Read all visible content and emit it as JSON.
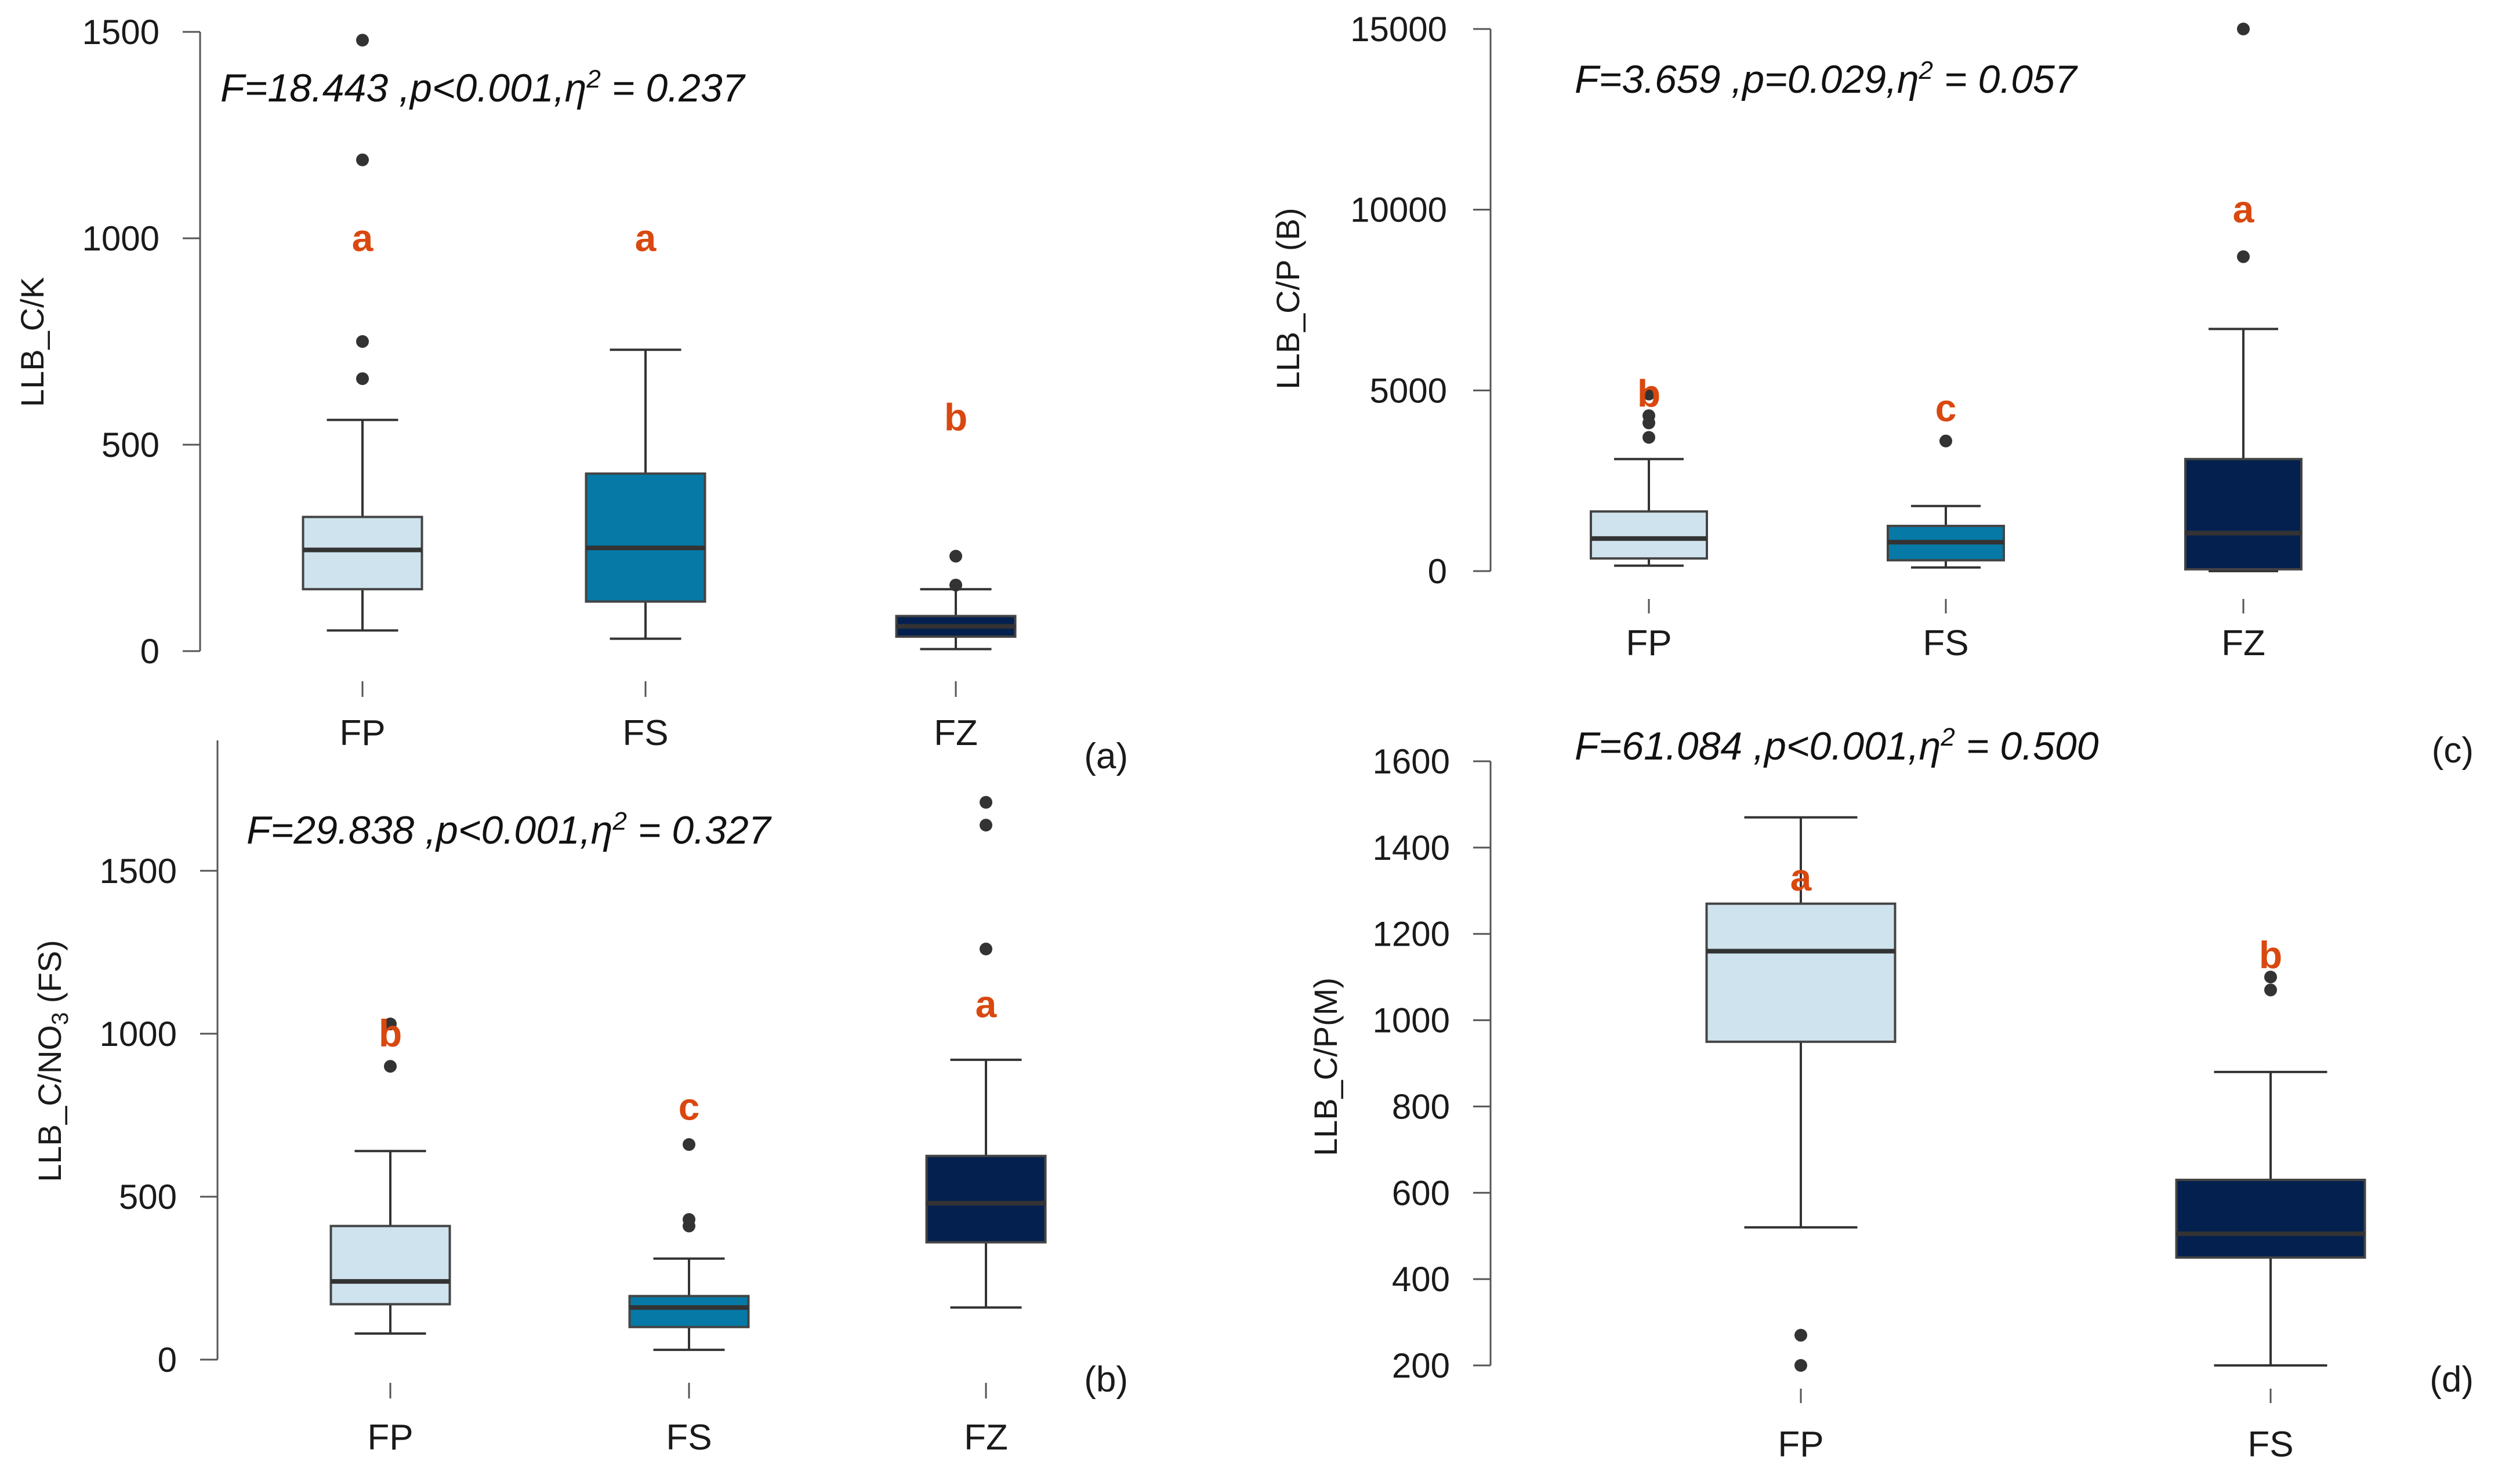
{
  "colors": {
    "FP": "#cfe3ee",
    "FS": "#0679a6",
    "FZ": "#04204f",
    "letter": "#d9480f",
    "axis": "#333333"
  },
  "chart_data": [
    {
      "panel": "(a)",
      "type": "boxplot",
      "ylabel": "LLB_C/K",
      "ylabel_parts": [
        "LLB_C/K"
      ],
      "stats_text": [
        "F=18.443 ,p<0.001,η",
        "2",
        " = 0.237"
      ],
      "ylim": [
        0,
        1500
      ],
      "yticks": [
        0,
        500,
        1000,
        1500
      ],
      "categories": [
        "FP",
        "FS",
        "FZ"
      ],
      "boxes": [
        {
          "category": "FP",
          "color_key": "FP",
          "whisker_low": 50,
          "q1": 150,
          "median": 245,
          "q3": 325,
          "whisker_high": 560,
          "outliers": [
            660,
            750,
            1190,
            1480
          ],
          "letter": "a",
          "letter_y": 1000
        },
        {
          "category": "FS",
          "color_key": "FS",
          "whisker_low": 30,
          "q1": 120,
          "median": 250,
          "q3": 430,
          "whisker_high": 730,
          "outliers": [],
          "letter": "a",
          "letter_y": 1000
        },
        {
          "category": "FZ",
          "color_key": "FZ",
          "whisker_low": 5,
          "q1": 35,
          "median": 60,
          "q3": 85,
          "whisker_high": 150,
          "outliers": [
            160,
            230
          ],
          "letter": "b",
          "letter_y": 565
        }
      ]
    },
    {
      "panel": "(c)",
      "type": "boxplot",
      "ylabel": "LLB_C/P (B)",
      "ylabel_parts": [
        "LLB_C/P (B)"
      ],
      "stats_text": [
        "F=3.659 ,p=0.029,η",
        "2",
        " = 0.057"
      ],
      "ylim": [
        0,
        15000
      ],
      "yticks": [
        0,
        5000,
        10000,
        15000
      ],
      "categories": [
        "FP",
        "FS",
        "FZ"
      ],
      "boxes": [
        {
          "category": "FP",
          "color_key": "FP",
          "whisker_low": 150,
          "q1": 350,
          "median": 900,
          "q3": 1650,
          "whisker_high": 3100,
          "outliers": [
            3700,
            4100,
            4300,
            4900
          ],
          "letter": "b",
          "letter_y": 4900
        },
        {
          "category": "FS",
          "color_key": "FS",
          "whisker_low": 100,
          "q1": 300,
          "median": 800,
          "q3": 1250,
          "whisker_high": 1800,
          "outliers": [
            3600
          ],
          "letter": "c",
          "letter_y": 4500
        },
        {
          "category": "FZ",
          "color_key": "FZ",
          "whisker_low": 0,
          "q1": 50,
          "median": 1050,
          "q3": 3100,
          "whisker_high": 6700,
          "outliers": [
            8700,
            15000
          ],
          "letter": "a",
          "letter_y": 10000
        }
      ]
    },
    {
      "panel": "(b)",
      "type": "boxplot",
      "ylabel": "LLB_C/NO3 (FS)",
      "ylabel_parts": [
        "LLB_C/NO",
        "3",
        " (FS)"
      ],
      "stats_text": [
        "F=29.838 ,p<0.001,η",
        "2",
        " = 0.327"
      ],
      "ylim": [
        0,
        1900
      ],
      "yticks": [
        0,
        500,
        1000,
        1500
      ],
      "categories": [
        "FP",
        "FS",
        "FZ"
      ],
      "boxes": [
        {
          "category": "FP",
          "color_key": "FP",
          "whisker_low": 80,
          "q1": 170,
          "median": 240,
          "q3": 410,
          "whisker_high": 640,
          "outliers": [
            900,
            1030
          ],
          "letter": "b",
          "letter_y": 1000
        },
        {
          "category": "FS",
          "color_key": "FS",
          "whisker_low": 30,
          "q1": 100,
          "median": 160,
          "q3": 195,
          "whisker_high": 310,
          "outliers": [
            410,
            430,
            660
          ],
          "letter": "c",
          "letter_y": 775
        },
        {
          "category": "FZ",
          "color_key": "FZ",
          "whisker_low": 160,
          "q1": 360,
          "median": 480,
          "q3": 625,
          "whisker_high": 920,
          "outliers": [
            1260,
            1640,
            1710
          ],
          "letter": "a",
          "letter_y": 1090
        }
      ]
    },
    {
      "panel": "(d)",
      "type": "boxplot",
      "ylabel": "LLB_C/P(M)",
      "ylabel_parts": [
        "LLB_C/P(M)"
      ],
      "stats_text": [
        "F=61.084 ,p<0.001,η",
        "2",
        " = 0.500"
      ],
      "ylim": [
        200,
        1600
      ],
      "yticks": [
        200,
        400,
        600,
        800,
        1000,
        1200,
        1400,
        1600
      ],
      "categories": [
        "FP",
        "FS"
      ],
      "boxes": [
        {
          "category": "FP",
          "color_key": "FP",
          "whisker_low": 520,
          "q1": 950,
          "median": 1160,
          "q3": 1270,
          "whisker_high": 1470,
          "outliers": [
            200,
            270
          ],
          "letter": "a",
          "letter_y": 1330
        },
        {
          "category": "FS",
          "color_key": "FS_dark",
          "whisker_low": 200,
          "q1": 450,
          "median": 505,
          "q3": 630,
          "whisker_high": 880,
          "outliers": [
            1070,
            1100
          ],
          "letter": "b",
          "letter_y": 1150,
          "letter_bold": false
        }
      ]
    }
  ]
}
